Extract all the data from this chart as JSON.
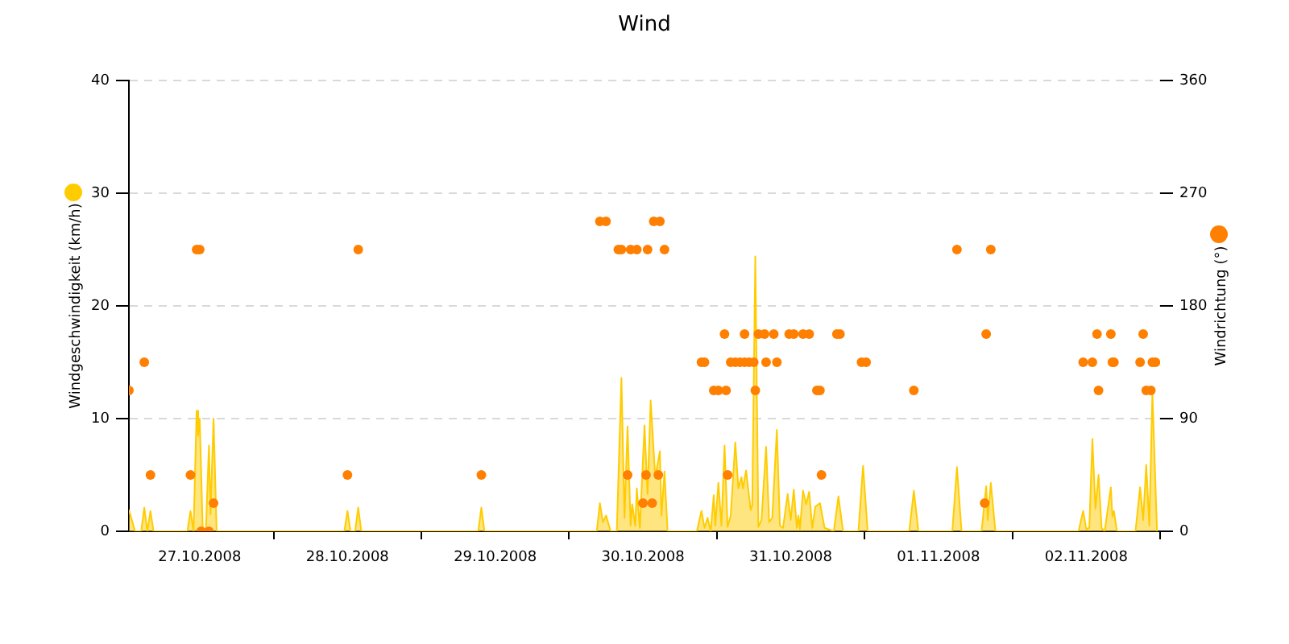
{
  "chart_data": {
    "type": "area",
    "title": "Wind",
    "ylabel": "Windgeschwindigkeit (km/h)",
    "y2label": "Windrichtung (°)",
    "xlim": [
      "2008-10-27T00:30",
      "2008-11-03T00:00"
    ],
    "xticks": [
      {
        "value": "2008-10-27T12:00",
        "label": "27.10.2008"
      },
      {
        "value": "2008-10-28T00:00",
        "label": null
      },
      {
        "value": "2008-10-28T12:00",
        "label": "28.10.2008"
      },
      {
        "value": "2008-10-29T00:00",
        "label": null
      },
      {
        "value": "2008-10-29T12:00",
        "label": "29.10.2008"
      },
      {
        "value": "2008-10-30T00:00",
        "label": null
      },
      {
        "value": "2008-10-30T12:00",
        "label": "30.10.2008"
      },
      {
        "value": "2008-10-31T00:00",
        "label": null
      },
      {
        "value": "2008-10-31T12:00",
        "label": "31.10.2008"
      },
      {
        "value": "2008-11-01T00:00",
        "label": null
      },
      {
        "value": "2008-11-01T12:00",
        "label": "01.11.2008"
      },
      {
        "value": "2008-11-02T00:00",
        "label": null
      },
      {
        "value": "2008-11-02T12:00",
        "label": "02.11.2008"
      },
      {
        "value": "2008-11-03T00:00",
        "label": null
      }
    ],
    "ylim": [
      0,
      40
    ],
    "yticks": [
      0,
      10,
      20,
      30,
      40
    ],
    "y2lim": [
      0,
      360
    ],
    "y2ticks": [
      0,
      90,
      180,
      270,
      360
    ],
    "grid": "y",
    "series": [
      {
        "type": "area",
        "color": "#ffcc00",
        "x": [
          "2008-10-27T00:30",
          "2008-10-27T01:30",
          "2008-10-27T02:30",
          "2008-10-27T03:00",
          "2008-10-27T03:30",
          "2008-10-27T04:00",
          "2008-10-27T04:30",
          "2008-10-27T10:00",
          "2008-10-27T10:30",
          "2008-10-27T11:00",
          "2008-10-27T11:30",
          "2008-10-27T11:45",
          "2008-10-27T12:00",
          "2008-10-27T12:30",
          "2008-10-27T13:00",
          "2008-10-27T13:30",
          "2008-10-27T13:45",
          "2008-10-27T14:15",
          "2008-10-27T14:45",
          "2008-10-28T11:30",
          "2008-10-28T12:00",
          "2008-10-28T12:30",
          "2008-10-28T13:15",
          "2008-10-28T13:45",
          "2008-10-28T14:15",
          "2008-10-29T09:15",
          "2008-10-29T09:45",
          "2008-10-29T10:15",
          "2008-10-30T04:30",
          "2008-10-30T05:00",
          "2008-10-30T05:30",
          "2008-10-30T06:00",
          "2008-10-30T06:45",
          "2008-10-30T07:45",
          "2008-10-30T08:30",
          "2008-10-30T09:00",
          "2008-10-30T09:30",
          "2008-10-30T10:00",
          "2008-10-30T10:15",
          "2008-10-30T10:45",
          "2008-10-30T11:00",
          "2008-10-30T11:30",
          "2008-10-30T12:15",
          "2008-10-30T12:45",
          "2008-10-30T13:15",
          "2008-10-30T14:00",
          "2008-10-30T14:45",
          "2008-10-30T15:00",
          "2008-10-30T15:30",
          "2008-10-30T16:00",
          "2008-10-30T20:45",
          "2008-10-30T21:30",
          "2008-10-30T22:00",
          "2008-10-30T22:30",
          "2008-10-30T23:00",
          "2008-10-30T23:30",
          "2008-10-30T23:45",
          "2008-10-31T00:15",
          "2008-10-31T00:45",
          "2008-10-31T01:15",
          "2008-10-31T01:45",
          "2008-10-31T02:15",
          "2008-10-31T03:00",
          "2008-10-31T03:30",
          "2008-10-31T04:00",
          "2008-10-31T04:15",
          "2008-10-31T04:45",
          "2008-10-31T05:30",
          "2008-10-31T05:45",
          "2008-10-31T06:15",
          "2008-10-31T06:45",
          "2008-10-31T07:15",
          "2008-10-31T08:00",
          "2008-10-31T08:30",
          "2008-10-31T09:00",
          "2008-10-31T09:45",
          "2008-10-31T10:15",
          "2008-10-31T10:45",
          "2008-10-31T11:30",
          "2008-10-31T12:00",
          "2008-10-31T12:30",
          "2008-10-31T13:00",
          "2008-10-31T13:15",
          "2008-10-31T13:30",
          "2008-10-31T14:00",
          "2008-10-31T14:30",
          "2008-10-31T15:00",
          "2008-10-31T15:30",
          "2008-10-31T16:00",
          "2008-10-31T16:45",
          "2008-10-31T17:30",
          "2008-10-31T19:00",
          "2008-10-31T19:45",
          "2008-10-31T20:30",
          "2008-10-31T23:00",
          "2008-10-31T23:45",
          "2008-11-01T00:30",
          "2008-11-01T07:15",
          "2008-11-01T08:00",
          "2008-11-01T08:45",
          "2008-11-01T14:15",
          "2008-11-01T15:00",
          "2008-11-01T15:45",
          "2008-11-01T19:00",
          "2008-11-01T19:45",
          "2008-11-01T20:00",
          "2008-11-01T20:30",
          "2008-11-01T21:15",
          "2008-11-02T10:45",
          "2008-11-02T11:30",
          "2008-11-02T12:00",
          "2008-11-02T12:30",
          "2008-11-02T13:00",
          "2008-11-02T13:30",
          "2008-11-02T14:00",
          "2008-11-02T14:30",
          "2008-11-02T15:00",
          "2008-11-02T16:00",
          "2008-11-02T16:15",
          "2008-11-02T16:30",
          "2008-11-02T17:00",
          "2008-11-02T20:00",
          "2008-11-02T20:45",
          "2008-11-02T21:15",
          "2008-11-02T21:45",
          "2008-11-02T22:15",
          "2008-11-02T22:45",
          "2008-11-02T23:30"
        ],
        "values": [
          1.9,
          0,
          0,
          2.1,
          0,
          1.8,
          0,
          0,
          1.8,
          0,
          10.7,
          8.5,
          10,
          0,
          0,
          7.6,
          1.5,
          10,
          0,
          0,
          1.8,
          0,
          0,
          2.1,
          0,
          0,
          2.1,
          0,
          0,
          2.5,
          0.8,
          1.4,
          0,
          0,
          13.6,
          1.2,
          9.3,
          0.5,
          2.4,
          0.5,
          3.8,
          0.3,
          9.4,
          3.3,
          11.6,
          4.8,
          7.1,
          1.4,
          5.3,
          0,
          0,
          1.8,
          0.3,
          1.2,
          0,
          3.2,
          0.5,
          4.3,
          0.5,
          7.6,
          0.4,
          1.4,
          7.9,
          3.8,
          4.8,
          3.8,
          5.4,
          1.9,
          2.3,
          24.4,
          0.4,
          1,
          7.5,
          0.8,
          1.2,
          9,
          0.5,
          0.3,
          3.3,
          1,
          3.7,
          0.3,
          1.4,
          0.2,
          3.6,
          2.4,
          3.5,
          0.3,
          2.2,
          2.5,
          0.3,
          0,
          3.1,
          0,
          0,
          5.8,
          0,
          0,
          3.6,
          0,
          0,
          5.7,
          0,
          0,
          4,
          1,
          4.3,
          0,
          0,
          1.8,
          0.2,
          0.3,
          8.2,
          2,
          5,
          0.3,
          0,
          3.9,
          1.3,
          1.8,
          0,
          0,
          3.9,
          1,
          5.9,
          0.5,
          12.3,
          0
        ]
      },
      {
        "type": "scatter",
        "axis": "y2",
        "color": "#ff8000",
        "marker": "circle",
        "x": [
          "2008-10-27T00:30",
          "2008-10-27T03:00",
          "2008-10-27T04:00",
          "2008-10-27T10:30",
          "2008-10-27T11:30",
          "2008-10-27T12:00",
          "2008-10-27T12:15",
          "2008-10-27T13:30",
          "2008-10-27T14:15",
          "2008-10-28T12:00",
          "2008-10-28T13:45",
          "2008-10-29T09:45",
          "2008-10-30T05:00",
          "2008-10-30T06:00",
          "2008-10-30T08:00",
          "2008-10-30T08:30",
          "2008-10-30T09:30",
          "2008-10-30T10:00",
          "2008-10-30T11:00",
          "2008-10-30T12:00",
          "2008-10-30T12:30",
          "2008-10-30T12:45",
          "2008-10-30T13:30",
          "2008-10-30T13:45",
          "2008-10-30T14:30",
          "2008-10-30T14:45",
          "2008-10-30T15:30",
          "2008-10-30T21:30",
          "2008-10-30T22:00",
          "2008-10-30T23:30",
          "2008-10-31T00:15",
          "2008-10-31T01:15",
          "2008-10-31T01:30",
          "2008-10-31T01:45",
          "2008-10-31T02:15",
          "2008-10-31T03:00",
          "2008-10-31T03:45",
          "2008-10-31T04:30",
          "2008-10-31T04:30",
          "2008-10-31T05:15",
          "2008-10-31T06:00",
          "2008-10-31T06:15",
          "2008-10-31T06:45",
          "2008-10-31T07:45",
          "2008-10-31T08:00",
          "2008-10-31T09:15",
          "2008-10-31T09:45",
          "2008-10-31T11:45",
          "2008-10-31T12:30",
          "2008-10-31T14:00",
          "2008-10-31T15:00",
          "2008-10-31T16:15",
          "2008-10-31T16:45",
          "2008-10-31T17:00",
          "2008-10-31T19:30",
          "2008-10-31T20:00",
          "2008-10-31T23:30",
          "2008-11-01T00:15",
          "2008-11-01T08:00",
          "2008-11-01T15:00",
          "2008-11-01T19:30",
          "2008-11-01T19:45",
          "2008-11-01T20:30",
          "2008-11-02T11:30",
          "2008-11-02T13:00",
          "2008-11-02T13:45",
          "2008-11-02T14:00",
          "2008-11-02T16:00",
          "2008-11-02T16:15",
          "2008-11-02T16:30",
          "2008-11-02T20:45",
          "2008-11-02T21:15",
          "2008-11-02T21:45",
          "2008-11-02T22:30",
          "2008-11-02T22:45",
          "2008-11-02T23:15"
        ],
        "values": [
          112.5,
          135,
          45,
          45,
          225,
          225,
          0,
          0,
          22.5,
          45,
          225,
          45,
          247.5,
          247.5,
          225,
          225,
          45,
          225,
          225,
          22.5,
          45,
          225,
          22.5,
          247.5,
          45,
          247.5,
          225,
          135,
          135,
          112.5,
          112.5,
          157.5,
          112.5,
          45,
          135,
          135,
          135,
          135,
          157.5,
          135,
          135,
          112.5,
          157.5,
          157.5,
          135,
          157.5,
          135,
          157.5,
          157.5,
          157.5,
          157.5,
          112.5,
          112.5,
          45,
          157.5,
          157.5,
          135,
          135,
          112.5,
          225,
          22.5,
          157.5,
          225,
          135,
          135,
          157.5,
          112.5,
          157.5,
          135,
          135,
          135,
          157.5,
          112.5,
          112.5,
          135,
          135
        ]
      }
    ]
  }
}
